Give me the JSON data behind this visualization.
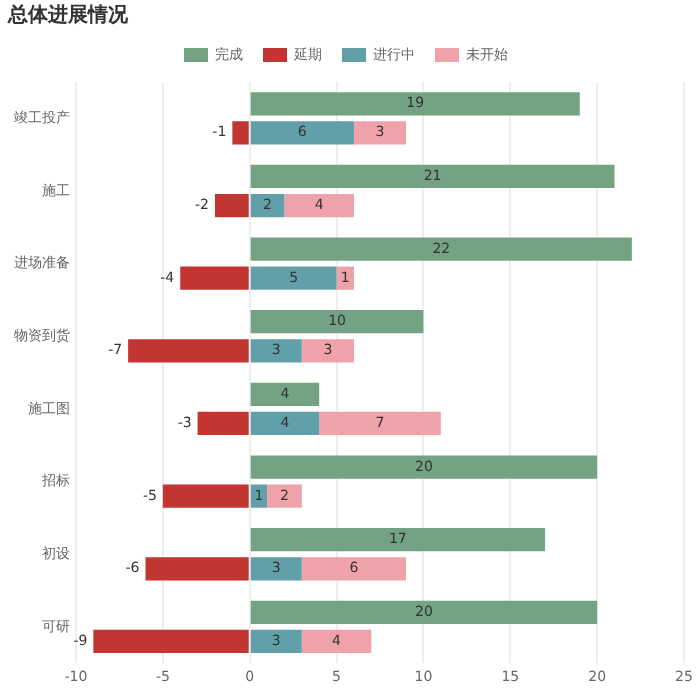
{
  "chart_data": {
    "type": "bar",
    "title": "总体进展情况",
    "orientation": "horizontal",
    "categories": [
      "竣工投产",
      "施工",
      "进场准备",
      "物资到货",
      "施工图",
      "招标",
      "初设",
      "可研"
    ],
    "series": [
      {
        "name": "完成",
        "color": "#74a384",
        "values": [
          19,
          21,
          22,
          10,
          4,
          20,
          17,
          20
        ]
      },
      {
        "name": "延期",
        "color": "#c23531",
        "values": [
          -1,
          -2,
          -4,
          -7,
          -3,
          -5,
          -6,
          -9
        ],
        "base": [
          0,
          0,
          0,
          0,
          0,
          0,
          0,
          0
        ]
      },
      {
        "name": "进行中",
        "color": "#61a0a8",
        "values": [
          6,
          2,
          5,
          3,
          4,
          1,
          3,
          3
        ],
        "base": [
          0,
          0,
          0,
          0,
          0,
          0,
          0,
          0
        ]
      },
      {
        "name": "未开始",
        "color": "#f0a2aa",
        "values": [
          3,
          4,
          1,
          3,
          7,
          2,
          6,
          4
        ],
        "base": [
          6,
          2,
          5,
          3,
          4,
          1,
          3,
          3
        ]
      }
    ],
    "xlim": [
      -10,
      25
    ],
    "xticks": [
      -10,
      -5,
      0,
      5,
      10,
      15,
      20,
      25
    ],
    "grid": "x",
    "legend": "top",
    "data_labels": true
  }
}
